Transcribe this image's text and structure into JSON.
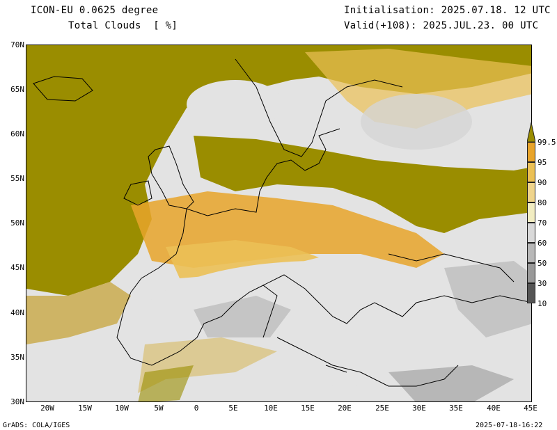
{
  "header": {
    "model": "ICON-EU 0.0625 degree",
    "variable": "Total Clouds  [ %]",
    "init": "Initialisation: 2025.07.18. 12 UTC",
    "valid": "Valid(+108): 2025.JUL.23. 00 UTC"
  },
  "lat_labels": [
    "70N",
    "65N",
    "60N",
    "55N",
    "50N",
    "45N",
    "40N",
    "35N",
    "30N"
  ],
  "lon_labels": [
    "20W",
    "15W",
    "10W",
    "5W",
    "0",
    "5E",
    "10E",
    "15E",
    "20E",
    "25E",
    "30E",
    "35E",
    "40E",
    "45E"
  ],
  "colorbar": {
    "labels": [
      "99.5",
      "95",
      "90",
      "80",
      "70",
      "60",
      "50",
      "30",
      "10"
    ],
    "colors": [
      "#9a8d00",
      "#e8a42a",
      "#ebc055",
      "#efd48c",
      "#f2edc2",
      "#d9d9d9",
      "#b8b8b8",
      "#999999",
      "#777777",
      "#555555"
    ]
  },
  "footer": {
    "left": "GrADS: COLA/IGES",
    "right": "2025-07-18-16:22"
  }
}
